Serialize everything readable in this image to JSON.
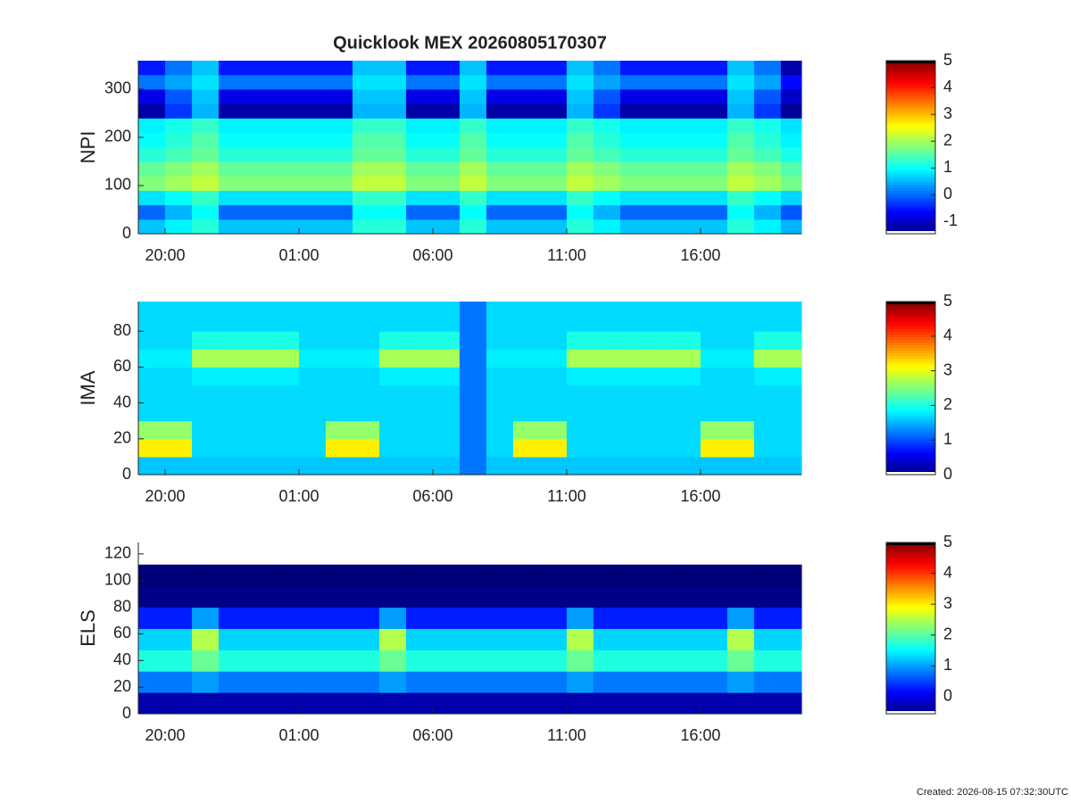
{
  "chart_data": [
    {
      "type": "heatmap",
      "title": "Quicklook MEX 20260805170307",
      "ylabel": "NPI",
      "colormap": "jet",
      "x": [
        19,
        20,
        21,
        22,
        23,
        24,
        25,
        26,
        27,
        28,
        29,
        30,
        31,
        32,
        33,
        34,
        35,
        36,
        37,
        38,
        39,
        40,
        41,
        42,
        43
      ],
      "y": [
        0,
        30,
        60,
        90,
        120,
        150,
        180,
        210,
        240,
        270,
        300,
        330
      ],
      "z": [
        [
          0.6,
          0.9,
          1.2,
          0.6,
          0.6,
          0.6,
          0.6,
          0.6,
          1.2,
          1.2,
          0.6,
          0.6,
          1.2,
          0.6,
          0.6,
          0.6,
          1.2,
          0.9,
          0.6,
          0.6,
          0.6,
          0.6,
          1.2,
          0.9,
          0.5
        ],
        [
          0,
          0.5,
          1,
          0,
          0,
          0,
          0,
          0,
          1,
          1,
          0,
          0,
          1,
          0,
          0,
          0,
          1,
          0.5,
          0,
          0,
          0,
          0,
          1,
          0.5,
          -0.1
        ],
        [
          0.8,
          1,
          1.3,
          0.8,
          0.8,
          0.8,
          0.8,
          0.8,
          1.3,
          1.3,
          0.8,
          0.8,
          1.3,
          0.8,
          0.8,
          0.8,
          1.3,
          1,
          0.8,
          0.8,
          0.8,
          0.8,
          1.3,
          1,
          0.7
        ],
        [
          1.8,
          2,
          2.2,
          1.8,
          1.8,
          1.8,
          1.8,
          1.8,
          2.2,
          2.2,
          1.8,
          1.8,
          2.2,
          1.8,
          1.8,
          1.8,
          2.2,
          2,
          1.8,
          1.8,
          1.8,
          1.8,
          2.2,
          2,
          1.7
        ],
        [
          1.6,
          1.8,
          2,
          1.6,
          1.6,
          1.6,
          1.6,
          1.6,
          2,
          2,
          1.6,
          1.6,
          2,
          1.6,
          1.6,
          1.6,
          2,
          1.8,
          1.6,
          1.6,
          1.6,
          1.6,
          2,
          1.8,
          1.5
        ],
        [
          1.2,
          1.4,
          1.6,
          1.2,
          1.2,
          1.2,
          1.2,
          1.2,
          1.6,
          1.6,
          1.2,
          1.2,
          1.6,
          1.2,
          1.2,
          1.2,
          1.6,
          1.4,
          1.2,
          1.2,
          1.2,
          1.2,
          1.6,
          1.4,
          1.1
        ],
        [
          1,
          1.2,
          1.5,
          1,
          1,
          1,
          1,
          1,
          1.5,
          1.5,
          1,
          1,
          1.5,
          1,
          1,
          1,
          1.5,
          1.2,
          1,
          1,
          1,
          1,
          1.5,
          1.2,
          0.9
        ],
        [
          0.9,
          1.1,
          1.3,
          0.9,
          0.9,
          0.9,
          0.9,
          0.9,
          1.3,
          1.3,
          0.9,
          0.9,
          1.3,
          0.9,
          0.9,
          0.9,
          1.3,
          1.1,
          0.9,
          0.9,
          0.9,
          0.9,
          1.3,
          1.1,
          0.8
        ],
        [
          -1.2,
          -0.3,
          0.5,
          -1.2,
          -1.2,
          -1.2,
          -1.2,
          -1.2,
          0.5,
          0.5,
          -1.2,
          -1.2,
          0.5,
          -1.2,
          -1.2,
          -1.2,
          0.5,
          -0.3,
          -1.2,
          -1.2,
          -1.2,
          -1.2,
          0.5,
          -0.3,
          -1.3
        ],
        [
          -0.8,
          -0.1,
          0.6,
          -0.8,
          -0.8,
          -0.8,
          -0.8,
          -0.8,
          0.6,
          0.6,
          -0.8,
          -0.8,
          0.6,
          -0.8,
          -0.8,
          -0.8,
          0.6,
          -0.1,
          -0.8,
          -0.8,
          -0.8,
          -0.8,
          0.6,
          -0.1,
          -1
        ],
        [
          0.1,
          0.4,
          0.8,
          0.1,
          0.1,
          0.1,
          0.1,
          0.1,
          0.8,
          0.8,
          0.1,
          0.1,
          0.8,
          0.1,
          0.1,
          0.1,
          0.8,
          0.4,
          0.1,
          0.1,
          0.1,
          0.1,
          0.8,
          0.4,
          -0.6
        ],
        [
          -0.5,
          0.1,
          0.6,
          -0.5,
          -0.5,
          -0.5,
          -0.5,
          -0.5,
          0.6,
          0.6,
          -0.5,
          -0.5,
          0.6,
          -0.5,
          -0.5,
          -0.5,
          0.6,
          0.1,
          -0.5,
          -0.5,
          -0.5,
          -0.5,
          0.6,
          0.1,
          -1.2
        ]
      ],
      "xlim": [
        19,
        43.77
      ],
      "xticks": [
        {
          "value": 20,
          "label": "20:00"
        },
        {
          "value": 25,
          "label": "01:00"
        },
        {
          "value": 30,
          "label": "06:00"
        },
        {
          "value": 35,
          "label": "11:00"
        },
        {
          "value": 40,
          "label": "16:00"
        }
      ],
      "ylim": [
        0,
        359
      ],
      "yticks": [
        0,
        100,
        200,
        300
      ],
      "clim": [
        -1.45,
        5
      ],
      "cticks": [
        -1,
        0,
        1,
        2,
        3,
        4,
        5
      ]
    },
    {
      "type": "heatmap",
      "ylabel": "IMA",
      "colormap": "jet",
      "x": [
        19,
        20,
        21,
        22,
        23,
        24,
        25,
        26,
        27,
        28,
        29,
        30,
        31,
        32,
        33,
        34,
        35,
        36,
        37,
        38,
        39,
        40,
        41,
        42,
        43
      ],
      "y": [
        0,
        10,
        20,
        30,
        40,
        50,
        60,
        70,
        80,
        90
      ],
      "z": [
        [
          1.6,
          1.6,
          1.6,
          1.6,
          1.6,
          1.6,
          1.6,
          1.6,
          1.6,
          1.6,
          1.6,
          1.6,
          1.2,
          1.6,
          1.6,
          1.6,
          1.6,
          1.6,
          1.6,
          1.6,
          1.6,
          1.6,
          1.6,
          1.6,
          1.6
        ],
        [
          3.2,
          3.2,
          1.7,
          1.7,
          1.7,
          1.7,
          1.7,
          3.2,
          3.2,
          1.7,
          1.7,
          1.7,
          1.2,
          1.7,
          3.2,
          3.2,
          1.7,
          1.7,
          1.7,
          1.7,
          1.7,
          3.2,
          3.2,
          1.7,
          1.7
        ],
        [
          2.6,
          2.6,
          1.7,
          1.7,
          1.7,
          1.7,
          1.7,
          2.6,
          2.6,
          1.7,
          1.7,
          1.7,
          1.2,
          1.7,
          2.6,
          2.6,
          1.7,
          1.7,
          1.7,
          1.7,
          1.7,
          2.6,
          2.6,
          1.7,
          1.7
        ],
        [
          1.7,
          1.7,
          1.7,
          1.7,
          1.7,
          1.7,
          1.7,
          1.7,
          1.7,
          1.7,
          1.7,
          1.7,
          1.2,
          1.7,
          1.7,
          1.7,
          1.7,
          1.7,
          1.7,
          1.7,
          1.7,
          1.7,
          1.7,
          1.7,
          1.7
        ],
        [
          1.7,
          1.7,
          1.7,
          1.7,
          1.7,
          1.7,
          1.7,
          1.7,
          1.7,
          1.7,
          1.7,
          1.7,
          1.2,
          1.7,
          1.7,
          1.7,
          1.7,
          1.7,
          1.7,
          1.7,
          1.7,
          1.7,
          1.7,
          1.7,
          1.7
        ],
        [
          1.7,
          1.7,
          1.8,
          1.8,
          1.8,
          1.8,
          1.7,
          1.7,
          1.7,
          1.8,
          1.8,
          1.8,
          1.2,
          1.7,
          1.7,
          1.7,
          1.8,
          1.8,
          1.8,
          1.8,
          1.8,
          1.7,
          1.7,
          1.8,
          1.8
        ],
        [
          1.8,
          1.8,
          2.7,
          2.7,
          2.7,
          2.7,
          1.8,
          1.8,
          1.8,
          2.7,
          2.7,
          2.7,
          1.2,
          1.8,
          1.8,
          1.8,
          2.7,
          2.7,
          2.7,
          2.7,
          2.7,
          1.8,
          1.8,
          2.7,
          2.7
        ],
        [
          1.7,
          1.7,
          2,
          2,
          2,
          2,
          1.7,
          1.7,
          1.7,
          2,
          2,
          2,
          1.2,
          1.7,
          1.7,
          1.7,
          2,
          2,
          2,
          2,
          2,
          1.7,
          1.7,
          2,
          2
        ],
        [
          1.7,
          1.7,
          1.7,
          1.7,
          1.7,
          1.7,
          1.7,
          1.7,
          1.7,
          1.7,
          1.7,
          1.7,
          1.2,
          1.7,
          1.7,
          1.7,
          1.7,
          1.7,
          1.7,
          1.7,
          1.7,
          1.7,
          1.7,
          1.7,
          1.7
        ],
        [
          1.7,
          1.7,
          1.7,
          1.7,
          1.7,
          1.7,
          1.7,
          1.7,
          1.7,
          1.7,
          1.7,
          1.7,
          1.2,
          1.7,
          1.7,
          1.7,
          1.7,
          1.7,
          1.7,
          1.7,
          1.7,
          1.7,
          1.7,
          1.7,
          1.7
        ]
      ],
      "xlim": [
        19,
        43.77
      ],
      "xticks": [
        {
          "value": 20,
          "label": "20:00"
        },
        {
          "value": 25,
          "label": "01:00"
        },
        {
          "value": 30,
          "label": "06:00"
        },
        {
          "value": 35,
          "label": "11:00"
        },
        {
          "value": 40,
          "label": "16:00"
        }
      ],
      "ylim": [
        0,
        96.5
      ],
      "yticks": [
        0,
        20,
        40,
        60,
        80
      ],
      "clim": [
        0,
        5
      ],
      "cticks": [
        0,
        1,
        2,
        3,
        4,
        5
      ]
    },
    {
      "type": "heatmap",
      "ylabel": "ELS",
      "colormap": "jet",
      "x": [
        19,
        20,
        21,
        22,
        23,
        24,
        25,
        26,
        27,
        28,
        29,
        30,
        31,
        32,
        33,
        34,
        35,
        36,
        37,
        38,
        39,
        40,
        41,
        42,
        43
      ],
      "y": [
        0,
        16,
        32,
        48,
        64,
        80,
        96,
        112
      ],
      "z": [
        [
          -0.3,
          -0.3,
          -0.3,
          -0.3,
          -0.3,
          -0.3,
          -0.3,
          -0.3,
          -0.3,
          -0.3,
          -0.3,
          -0.3,
          -0.3,
          -0.3,
          -0.3,
          -0.3,
          -0.3,
          -0.3,
          -0.3,
          -0.3,
          -0.3,
          -0.3,
          -0.3,
          -0.3,
          -0.3
        ],
        [
          0.8,
          0.8,
          1,
          0.8,
          0.8,
          0.8,
          0.8,
          0.8,
          0.8,
          1,
          0.8,
          0.8,
          0.8,
          0.8,
          0.8,
          0.8,
          1,
          0.8,
          0.8,
          0.8,
          0.8,
          0.8,
          1,
          0.8,
          0.8
        ],
        [
          1.7,
          1.7,
          2.1,
          1.7,
          1.7,
          1.7,
          1.7,
          1.7,
          1.7,
          2.1,
          1.7,
          1.7,
          1.7,
          1.7,
          1.7,
          1.7,
          2.1,
          1.7,
          1.7,
          1.7,
          1.7,
          1.7,
          2.1,
          1.7,
          1.7
        ],
        [
          1.3,
          1.3,
          2.5,
          1.3,
          1.3,
          1.3,
          1.3,
          1.3,
          1.3,
          2.5,
          1.3,
          1.3,
          1.3,
          1.3,
          1.3,
          1.3,
          2.5,
          1.3,
          1.3,
          1.3,
          1.3,
          1.3,
          2.5,
          1.3,
          1.3
        ],
        [
          0.3,
          0.3,
          1,
          0.3,
          0.3,
          0.3,
          0.3,
          0.3,
          0.3,
          1,
          0.3,
          0.3,
          0.3,
          0.3,
          0.3,
          0.3,
          1,
          0.3,
          0.3,
          0.3,
          0.3,
          0.3,
          1,
          0.3,
          0.3
        ],
        [
          -0.5,
          -0.5,
          -0.5,
          -0.5,
          -0.5,
          -0.5,
          -0.5,
          -0.5,
          -0.5,
          -0.5,
          -0.5,
          -0.5,
          -0.5,
          -0.5,
          -0.5,
          -0.5,
          -0.5,
          -0.5,
          -0.5,
          -0.5,
          -0.5,
          -0.5,
          -0.5,
          -0.5,
          -0.5
        ],
        [
          -0.6,
          -0.6,
          -0.6,
          -0.6,
          -0.6,
          -0.6,
          -0.6,
          -0.6,
          -0.6,
          -0.6,
          -0.6,
          -0.6,
          -0.6,
          -0.6,
          -0.6,
          -0.6,
          -0.6,
          -0.6,
          -0.6,
          -0.6,
          -0.6,
          -0.6,
          -0.6,
          -0.6,
          -0.6
        ],
        [
          null,
          null,
          null,
          null,
          null,
          null,
          null,
          null,
          null,
          null,
          null,
          null,
          null,
          null,
          null,
          null,
          null,
          null,
          null,
          null,
          null,
          null,
          null,
          null,
          null
        ]
      ],
      "xlim": [
        19,
        43.77
      ],
      "xticks": [
        {
          "value": 20,
          "label": "20:00"
        },
        {
          "value": 25,
          "label": "01:00"
        },
        {
          "value": 30,
          "label": "06:00"
        },
        {
          "value": 35,
          "label": "11:00"
        },
        {
          "value": 40,
          "label": "16:00"
        }
      ],
      "ylim": [
        0,
        128.6
      ],
      "yticks": [
        0,
        20,
        40,
        60,
        80,
        100,
        120
      ],
      "clim": [
        -0.55,
        5
      ],
      "cticks": [
        0,
        1,
        2,
        3,
        4,
        5
      ]
    }
  ],
  "footer": "Created: 2026-08-15 07:32:30UTC"
}
